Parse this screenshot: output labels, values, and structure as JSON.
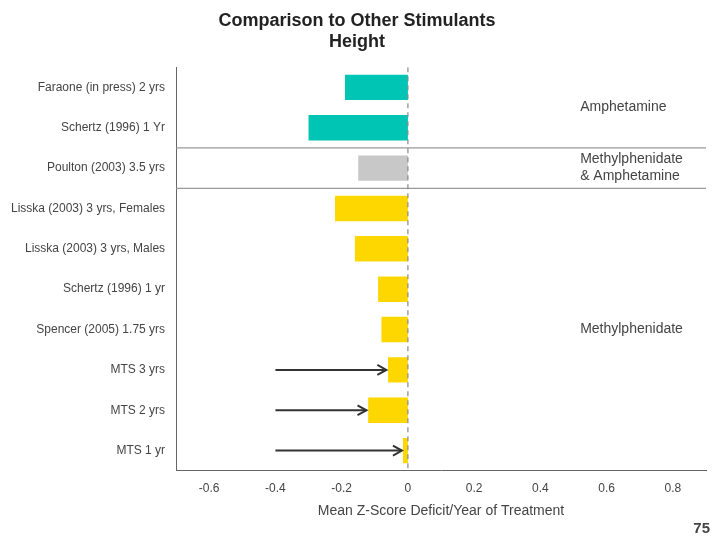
{
  "chart_data": {
    "type": "bar",
    "orientation": "horizontal",
    "title": "Comparison to Other Stimulants\nHeight",
    "x_label": "Mean Z-Score Deficit/Year of Treatment",
    "categories": [
      "Faraone (in press) 2 yrs",
      "Schertz (1996) 1 Yr",
      "Poulton (2003) 3.5 yrs",
      "Lisska (2003) 3 yrs, Females",
      "Lisska (2003) 3 yrs, Males",
      "Schertz (1996) 1 yr",
      "Spencer (2005) 1.75 yrs",
      "MTS 3 yrs",
      "MTS 2 yrs",
      "MTS 1 yr"
    ],
    "values": [
      -0.19,
      -0.3,
      -0.15,
      -0.22,
      -0.16,
      -0.09,
      -0.08,
      -0.06,
      -0.12,
      -0.015
    ],
    "colors": [
      "#00C4B4",
      "#00C4B4",
      "#C8C8C8",
      "#FFD700",
      "#FFD700",
      "#FFD700",
      "#FFD700",
      "#FFD700",
      "#FFD700",
      "#FFD700"
    ],
    "xlim": [
      -0.7,
      0.9
    ],
    "xticks": [
      -0.6,
      -0.4,
      -0.2,
      0,
      0.2,
      0.4,
      0.6,
      0.8
    ],
    "grid": false,
    "baseline": 0,
    "annotations": [
      {
        "text": "Amphetamine",
        "x": 0.52,
        "categories": [
          "Faraone (in press) 2 yrs",
          "Schertz (1996) 1 Yr"
        ]
      },
      {
        "text": "Methylphenidate\n& Amphetamine",
        "x": 0.52,
        "categories": [
          "Poulton (2003) 3.5 yrs"
        ]
      },
      {
        "text": "Methylphenidate",
        "x": 0.52,
        "categories": [
          "Lisska (2003) 3 yrs, Females",
          "Lisska (2003) 3 yrs, Males",
          "Schertz (1996) 1 yr",
          "Spencer (2005) 1.75 yrs",
          "MTS 3 yrs",
          "MTS 2 yrs",
          "MTS 1 yr"
        ]
      }
    ],
    "arrows": [
      {
        "category": "MTS 3 yrs",
        "x_start": -0.4,
        "x_end": -0.065
      },
      {
        "category": "MTS 2 yrs",
        "x_start": -0.4,
        "x_end": -0.125
      },
      {
        "category": "MTS 1 yr",
        "x_start": -0.4,
        "x_end": -0.018
      }
    ],
    "page_number": "75"
  }
}
